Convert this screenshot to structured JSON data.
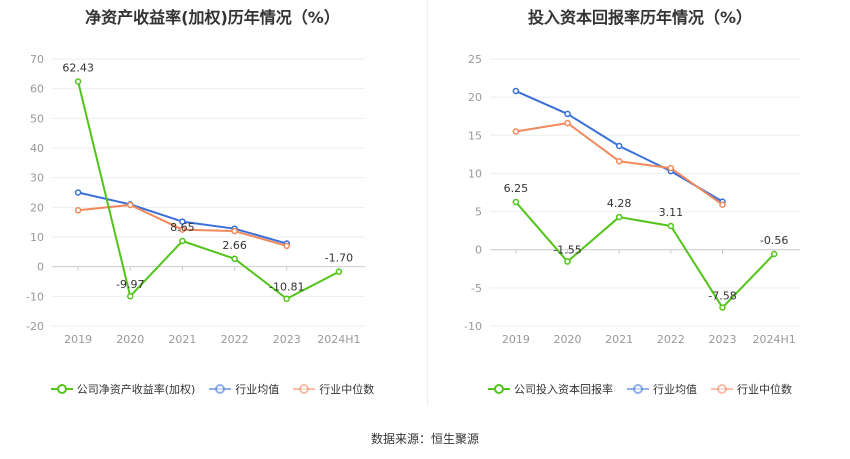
{
  "chart_data": [
    {
      "type": "line",
      "title": "净资产收益率(加权)历年情况（%）",
      "categories": [
        "2019",
        "2020",
        "2021",
        "2022",
        "2023",
        "2024H1"
      ],
      "ylim": [
        -20,
        70
      ],
      "yticks": [
        70,
        60,
        50,
        40,
        30,
        20,
        10,
        0,
        -10,
        -20
      ],
      "grid": true,
      "legend_position": "bottom",
      "series": [
        {
          "name": "公司净资产收益率(加权)",
          "color": "#52c41a",
          "values": [
            62.43,
            -9.97,
            8.65,
            2.66,
            -10.81,
            -1.7
          ],
          "labels": [
            "62.43",
            "-9.97",
            "8.65",
            "2.66",
            "-10.81",
            "-1.70"
          ]
        },
        {
          "name": "行业均值",
          "color": "#3b6fd8",
          "values": [
            25.0,
            21.0,
            15.2,
            12.8,
            7.8,
            null
          ]
        },
        {
          "name": "行业中位数",
          "color": "#f08a5d",
          "values": [
            19.0,
            20.8,
            12.5,
            12.0,
            7.0,
            null
          ]
        }
      ]
    },
    {
      "type": "line",
      "title": "投入资本回报率历年情况（%）",
      "categories": [
        "2019",
        "2020",
        "2021",
        "2022",
        "2023",
        "2024H1"
      ],
      "ylim": [
        -10,
        25
      ],
      "yticks": [
        25,
        20,
        15,
        10,
        5,
        0,
        -5,
        -10
      ],
      "grid": true,
      "legend_position": "bottom",
      "series": [
        {
          "name": "公司投入资本回报率",
          "color": "#52c41a",
          "values": [
            6.25,
            -1.55,
            4.28,
            3.11,
            -7.58,
            -0.56
          ],
          "labels": [
            "6.25",
            "-1.55",
            "4.28",
            "3.11",
            "-7.58",
            "-0.56"
          ]
        },
        {
          "name": "行业均值",
          "color": "#3b6fd8",
          "values": [
            20.8,
            17.8,
            13.6,
            10.3,
            6.3,
            null
          ]
        },
        {
          "name": "行业中位数",
          "color": "#f08a5d",
          "values": [
            15.5,
            16.6,
            11.6,
            10.7,
            5.9,
            null
          ]
        }
      ]
    }
  ],
  "footer": {
    "source": "数据来源：恒生聚源"
  }
}
